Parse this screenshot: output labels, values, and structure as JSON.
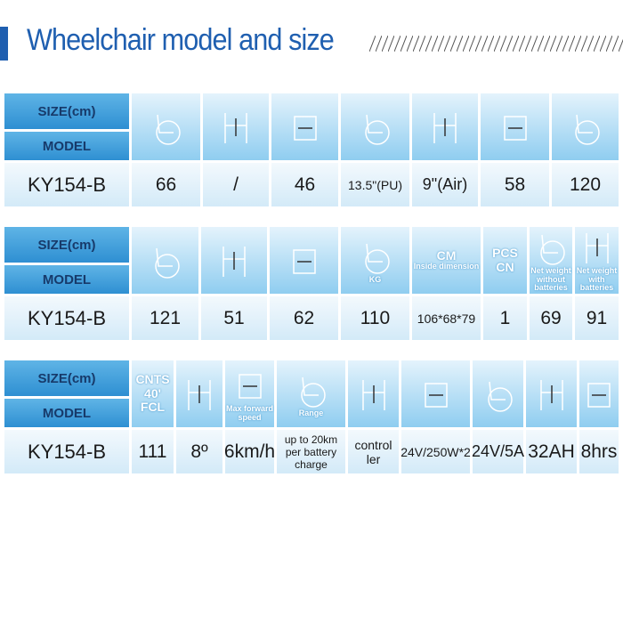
{
  "title": "Wheelchair model and size",
  "tables": [
    {
      "size_label": "SIZE(cm)",
      "model_label": "MODEL",
      "model": "KY154-B",
      "columns": [
        {
          "value": "66"
        },
        {
          "value": "/"
        },
        {
          "value": "46"
        },
        {
          "value": "13.5\"(PU)"
        },
        {
          "value": "9\"(Air)"
        },
        {
          "value": "58"
        },
        {
          "value": "120"
        }
      ]
    },
    {
      "size_label": "SIZE(cm)",
      "model_label": "MODEL",
      "model": "KY154-B",
      "columns": [
        {
          "value": "121"
        },
        {
          "value": "51"
        },
        {
          "value": "62"
        },
        {
          "value": "110",
          "caption": [
            "KG"
          ]
        },
        {
          "value": "106*68*79",
          "caption": [
            "CM",
            "Inside dimension"
          ]
        },
        {
          "value": "1",
          "caption": [
            "PCS",
            "CN"
          ]
        },
        {
          "value": "69",
          "caption": [
            "Net weight without batteries"
          ]
        },
        {
          "value": "91",
          "caption": [
            "Net weight with batteries"
          ]
        }
      ]
    },
    {
      "size_label": "SIZE(cm)",
      "model_label": "MODEL",
      "model": "KY154-B",
      "columns": [
        {
          "value": "111",
          "caption": [
            "CNTS",
            "40'",
            "FCL"
          ]
        },
        {
          "value": "8º"
        },
        {
          "value": "6km/h",
          "caption": [
            "Max forward speed"
          ]
        },
        {
          "value": "up to 20km per battery charge",
          "caption": [
            "Range"
          ]
        },
        {
          "value": "control ler"
        },
        {
          "value": "24V/250W*2"
        },
        {
          "value": "24V/5A"
        },
        {
          "value": "32AH"
        },
        {
          "value": "8hrs"
        }
      ]
    }
  ]
}
